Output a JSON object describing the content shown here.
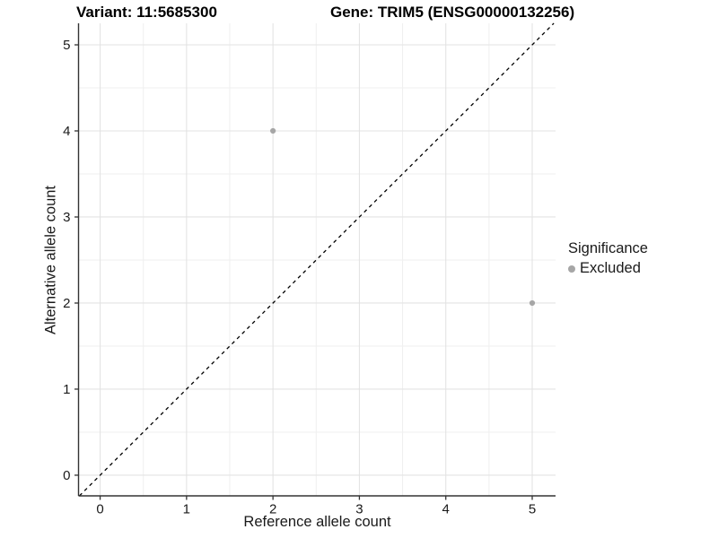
{
  "header": {
    "title_left": "Variant: 11:5685300",
    "title_right": "Gene: TRIM5 (ENSG00000132256)"
  },
  "chart_data": {
    "type": "scatter",
    "title_left": "Variant: 11:5685300",
    "title_right": "Gene: TRIM5 (ENSG00000132256)",
    "xlabel": "Reference allele count",
    "ylabel": "Alternative allele count",
    "x_ticks": [
      0,
      1,
      2,
      3,
      4,
      5
    ],
    "y_ticks": [
      0,
      1,
      2,
      3,
      4,
      5
    ],
    "xlim": [
      -0.25,
      5.27
    ],
    "ylim": [
      -0.24,
      5.25
    ],
    "grid": "major+minor",
    "minor_step": 0.5,
    "points": [
      {
        "x": 2,
        "y": 4,
        "significance": "Excluded"
      },
      {
        "x": 5,
        "y": 2,
        "significance": "Excluded"
      }
    ],
    "abline": {
      "slope": 1,
      "intercept": 0,
      "style": "dashed",
      "color": "#000000"
    },
    "legend": {
      "title": "Significance",
      "position": "right",
      "items": [
        {
          "label": "Excluded",
          "color": "#a6a6a6"
        }
      ]
    },
    "colors": {
      "point": "#a6a6a6",
      "grid_major": "#e3e3e3",
      "grid_minor": "#efefef",
      "axis_line": "#333333",
      "tick_label": "#1a1a1a",
      "title_text": "#000000"
    }
  }
}
